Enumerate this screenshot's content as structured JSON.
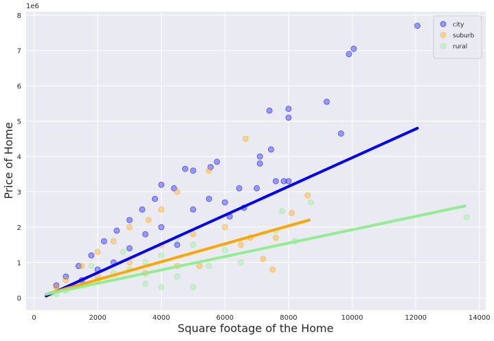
{
  "chart_data": {
    "type": "scatter",
    "xlabel": "Square footage of the Home",
    "ylabel": "Price of Home",
    "y_offset_label": "1e6",
    "xlim": [
      -250,
      14200
    ],
    "ylim": [
      -0.35,
      8.1
    ],
    "xticks": [
      0,
      2000,
      4000,
      6000,
      8000,
      10000,
      12000,
      14000
    ],
    "yticks": [
      0,
      1,
      2,
      3,
      4,
      5,
      6,
      7,
      8
    ],
    "grid": true,
    "legend": "upper-right",
    "series": [
      {
        "name": "city",
        "color": "#0000ff",
        "x": [
          12050,
          10050,
          9900,
          9200,
          9650,
          8000,
          8000,
          7400,
          7450,
          7100,
          7100,
          7600,
          7850,
          6450,
          6600,
          6150,
          5750,
          5550,
          5000,
          4750,
          4000,
          4400,
          3800,
          3400,
          3000,
          2600,
          2200,
          1800,
          1400,
          1000,
          700,
          2000,
          3000,
          4000,
          5000,
          5500,
          4500,
          3500,
          2500,
          1500,
          6000,
          7000,
          8000
        ],
        "y": [
          7.7,
          7.05,
          6.9,
          5.55,
          4.65,
          5.35,
          5.1,
          5.3,
          4.2,
          4.0,
          3.8,
          3.3,
          3.3,
          3.1,
          2.55,
          2.3,
          3.85,
          3.7,
          3.6,
          3.65,
          3.2,
          3.1,
          2.8,
          2.5,
          2.2,
          1.9,
          1.6,
          1.2,
          0.9,
          0.6,
          0.35,
          0.8,
          1.4,
          2.0,
          2.5,
          2.8,
          1.5,
          1.8,
          1.0,
          0.5,
          2.7,
          3.1,
          3.3
        ]
      },
      {
        "name": "suburb",
        "color": "#ffa500",
        "x": [
          6650,
          8600,
          8100,
          7600,
          7200,
          7500,
          5500,
          4500,
          4000,
          3600,
          3000,
          2500,
          2000,
          1500,
          1000,
          700,
          3000,
          4000,
          5000,
          6000,
          6500,
          2000,
          5200,
          4500,
          3500,
          6800
        ],
        "y": [
          4.5,
          2.9,
          2.4,
          1.7,
          1.1,
          0.8,
          3.6,
          3.0,
          2.5,
          2.2,
          2.0,
          1.6,
          1.3,
          0.9,
          0.5,
          0.3,
          1.0,
          1.5,
          1.8,
          2.0,
          1.5,
          0.6,
          0.9,
          0.9,
          0.7,
          1.7
        ]
      },
      {
        "name": "rural",
        "color": "#90ee90",
        "x": [
          13600,
          8700,
          7800,
          7600,
          8200,
          6000,
          5000,
          4500,
          4000,
          3500,
          3000,
          2500,
          2000,
          1500,
          1000,
          700,
          3500,
          4500,
          5500,
          6500,
          2800,
          1800,
          5000,
          4000
        ],
        "y": [
          2.28,
          2.7,
          2.45,
          1.9,
          1.6,
          1.35,
          1.5,
          1.7,
          1.2,
          1.0,
          0.8,
          0.7,
          0.5,
          0.35,
          0.2,
          0.1,
          0.4,
          0.6,
          0.9,
          1.0,
          1.3,
          0.9,
          0.3,
          0.3
        ]
      }
    ],
    "fits": [
      {
        "color": "#0000ff",
        "x": [
          380,
          12050
        ],
        "y": [
          0.05,
          4.8
        ]
      },
      {
        "color": "#ffa500",
        "x": [
          380,
          8650
        ],
        "y": [
          0.1,
          2.2
        ]
      },
      {
        "color": "#90ee90",
        "x": [
          380,
          13550
        ],
        "y": [
          0.1,
          2.6
        ]
      }
    ]
  }
}
